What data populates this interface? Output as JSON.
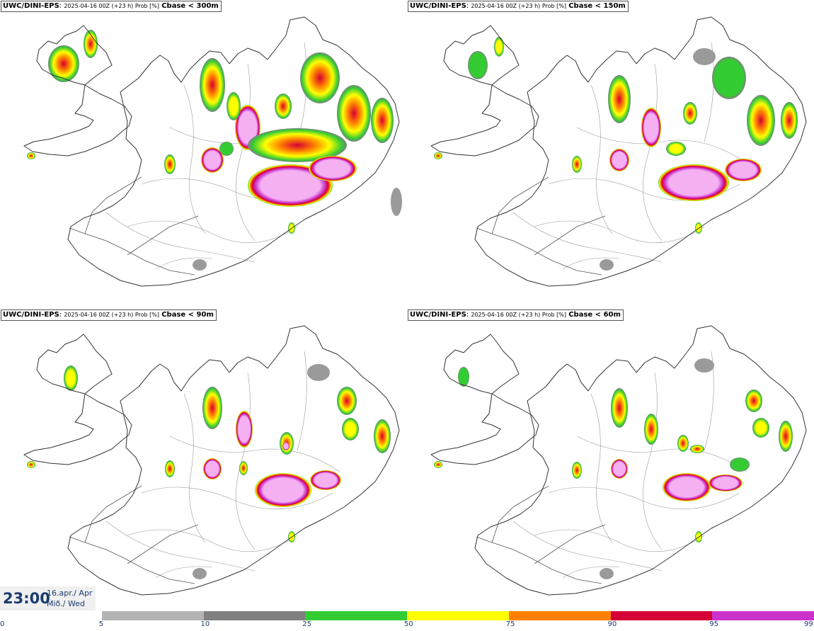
{
  "panels": [
    {
      "model": "UWC/DINI-EPS",
      "info": "2025-04-16 00Z (+23 h) Prob [%]",
      "variable": "Cbase < 300m"
    },
    {
      "model": "UWC/DINI-EPS",
      "info": "2025-04-16 00Z (+23 h) Prob [%]",
      "variable": "Cbase < 150m"
    },
    {
      "model": "UWC/DINI-EPS",
      "info": "2025-04-16 00Z (+23 h) Prob [%]",
      "variable": "Cbase < 90m"
    },
    {
      "model": "UWC/DINI-EPS",
      "info": "2025-04-16 00Z (+23 h) Prob [%]",
      "variable": "Cbase < 60m"
    }
  ],
  "valid": {
    "time": "23:00",
    "date_line1": "16.apr./ Apr",
    "date_line2": "Mið./ Wed"
  },
  "colorbar": {
    "ticks": [
      "0",
      "5",
      "10",
      "25",
      "50",
      "75",
      "90",
      "95",
      "99"
    ],
    "colors": [
      "#ffffff",
      "#b3b3b3",
      "#808080",
      "#33cc33",
      "#ffff00",
      "#ff7f00",
      "#d60036",
      "#cc33cc",
      "#f8b8f8"
    ]
  }
}
